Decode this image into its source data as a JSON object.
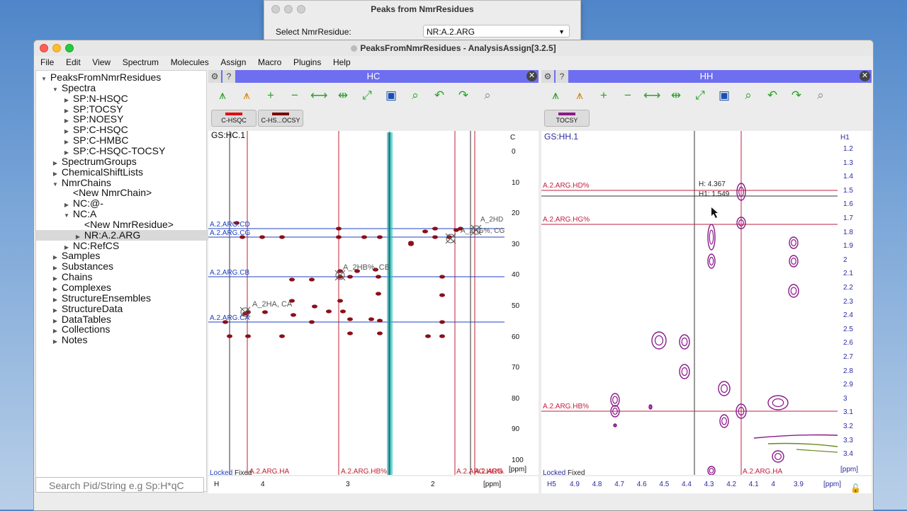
{
  "dialog": {
    "title": "Peaks from NmrResidues",
    "label": "Select NmrResidue:",
    "selected": "NR:A.2.ARG"
  },
  "window": {
    "title": "PeaksFromNmrResidues - AnalysisAssign[3.2.5]"
  },
  "menu": [
    "File",
    "Edit",
    "View",
    "Spectrum",
    "Molecules",
    "Assign",
    "Macro",
    "Plugins",
    "Help"
  ],
  "tree": [
    {
      "label": "PeaksFromNmrResidues",
      "level": 0,
      "arrow": "down"
    },
    {
      "label": "Spectra",
      "level": 1,
      "arrow": "down"
    },
    {
      "label": "SP:N-HSQC",
      "level": 2,
      "arrow": "right"
    },
    {
      "label": "SP:TOCSY",
      "level": 2,
      "arrow": "right"
    },
    {
      "label": "SP:NOESY",
      "level": 2,
      "arrow": "right"
    },
    {
      "label": "SP:C-HSQC",
      "level": 2,
      "arrow": "right"
    },
    {
      "label": "SP:C-HMBC",
      "level": 2,
      "arrow": "right"
    },
    {
      "label": "SP:C-HSQC-TOCSY",
      "level": 2,
      "arrow": "right"
    },
    {
      "label": "SpectrumGroups",
      "level": 1,
      "arrow": "right"
    },
    {
      "label": "ChemicalShiftLists",
      "level": 1,
      "arrow": "right"
    },
    {
      "label": "NmrChains",
      "level": 1,
      "arrow": "down"
    },
    {
      "label": "<New NmrChain>",
      "level": 2,
      "arrow": ""
    },
    {
      "label": "NC:@-",
      "level": 2,
      "arrow": "right"
    },
    {
      "label": "NC:A",
      "level": 2,
      "arrow": "down"
    },
    {
      "label": "<New NmrResidue>",
      "level": 3,
      "arrow": ""
    },
    {
      "label": "NR:A.2.ARG",
      "level": 3,
      "arrow": "right",
      "selected": true
    },
    {
      "label": "NC:RefCS",
      "level": 2,
      "arrow": "right"
    },
    {
      "label": "Samples",
      "level": 1,
      "arrow": "right"
    },
    {
      "label": "Substances",
      "level": 1,
      "arrow": "right"
    },
    {
      "label": "Chains",
      "level": 1,
      "arrow": "right"
    },
    {
      "label": "Complexes",
      "level": 1,
      "arrow": "right"
    },
    {
      "label": "StructureEnsembles",
      "level": 1,
      "arrow": "right"
    },
    {
      "label": "StructureData",
      "level": 1,
      "arrow": "right"
    },
    {
      "label": "DataTables",
      "level": 1,
      "arrow": "right"
    },
    {
      "label": "Collections",
      "level": 1,
      "arrow": "right"
    },
    {
      "label": "Notes",
      "level": 1,
      "arrow": "right"
    }
  ],
  "search_placeholder": "Search Pid/String e.g Sp:H*qC",
  "hc": {
    "title": "HC",
    "spectra": [
      {
        "label": "C-HSQC",
        "color": "#e01010"
      },
      {
        "label": "C-HS...OCSY",
        "color": "#7a0a0a"
      }
    ],
    "strip_label": "GS:HC.1",
    "axis_code": "C",
    "y_ticks": [
      "0",
      "10",
      "20",
      "30",
      "40",
      "50",
      "60",
      "70",
      "80",
      "90",
      "100"
    ],
    "y_unit": "[ppm]",
    "x_ticks": [
      "4",
      "3",
      "2"
    ],
    "x_axis_code": "H",
    "x_unit": "[ppm]",
    "locked": "Locked",
    "fixed": "Fixed",
    "h_marks": [
      "A.2.ARG.CD",
      "A.2.ARG.CG",
      "A.2.ARG.CB",
      "A.2.ARG.CA"
    ],
    "v_marks": [
      "A.2.ARG.HA",
      "A.2.ARG.HB%",
      "A.2.ARG.HG%",
      "A.2.ARG.HD%"
    ],
    "peaks": [
      "A_2HD",
      "A_2HG%, CG",
      "A_2HB%, CB",
      "A_2HA, CA"
    ]
  },
  "hh": {
    "title": "HH",
    "spectra": [
      {
        "label": "TOCSY",
        "color": "#8a1a8a"
      }
    ],
    "strip_label": "GS:HH.1",
    "axis_code": "H1",
    "y_ticks": [
      "1.2",
      "1.3",
      "1.4",
      "1.5",
      "1.6",
      "1.7",
      "1.8",
      "1.9",
      "2",
      "2.1",
      "2.2",
      "2.3",
      "2.4",
      "2.5",
      "2.6",
      "2.7",
      "2.8",
      "2.9",
      "3",
      "3.1",
      "3.2",
      "3.3",
      "3.4"
    ],
    "y_unit": "[ppm]",
    "x_ticks": [
      "4.9",
      "4.8",
      "4.7",
      "4.6",
      "4.5",
      "4.4",
      "4.3",
      "4.2",
      "4.1",
      "4",
      "3.9"
    ],
    "x_axis_code": "H5",
    "x_unit": "[ppm]",
    "locked": "Locked",
    "fixed": "Fixed",
    "h_marks": [
      "A.2.ARG.HD%",
      "A.2.ARG.HG%",
      "A.2.ARG.HB%"
    ],
    "v_mark": "A.2.ARG.HA",
    "cursor_h": "H: 4.367",
    "cursor_h1": "H1: 1.549"
  }
}
